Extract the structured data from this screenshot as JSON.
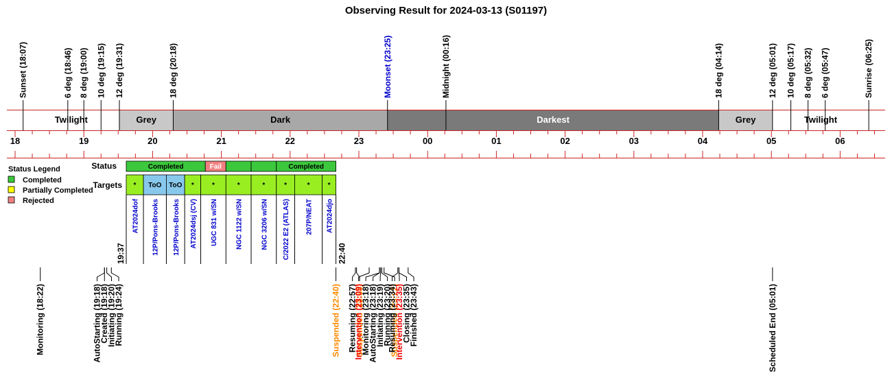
{
  "chart_data": {
    "type": "timeline",
    "title": "Observing Result for 2024-03-13 (S01197)",
    "time_range": [
      "18:00",
      "06:30"
    ],
    "hour_ticks": [
      "18",
      "19",
      "20",
      "21",
      "22",
      "23",
      "00",
      "01",
      "02",
      "03",
      "04",
      "05",
      "06"
    ],
    "sky_events": [
      {
        "label": "Sunset (18:07)",
        "time": "18:07",
        "color": "#000000"
      },
      {
        "label": "6 deg (18:46)",
        "time": "18:46",
        "color": "#000000"
      },
      {
        "label": "8 deg (19:00)",
        "time": "19:00",
        "color": "#000000"
      },
      {
        "label": "10 deg (19:15)",
        "time": "19:15",
        "color": "#000000"
      },
      {
        "label": "12 deg (19:31)",
        "time": "19:31",
        "color": "#000000"
      },
      {
        "label": "18 deg (20:18)",
        "time": "20:18",
        "color": "#000000"
      },
      {
        "label": "Moonset (23:25)",
        "time": "23:25",
        "color": "#0000cc"
      },
      {
        "label": "Midnight (00:16)",
        "time": "00:16",
        "color": "#000000"
      },
      {
        "label": "18 deg (04:14)",
        "time": "04:14",
        "color": "#000000"
      },
      {
        "label": "12 deg (05:01)",
        "time": "05:01",
        "color": "#000000"
      },
      {
        "label": "10 deg (05:17)",
        "time": "05:17",
        "color": "#000000"
      },
      {
        "label": "8 deg (05:32)",
        "time": "05:32",
        "color": "#000000"
      },
      {
        "label": "6 deg (05:47)",
        "time": "05:47",
        "color": "#000000"
      },
      {
        "label": "Sunrise (06:25)",
        "time": "06:25",
        "color": "#000000"
      }
    ],
    "bands": [
      {
        "label": "Twilight",
        "start": "18:07",
        "end": "19:31",
        "fill": "#ffffff",
        "text_color": "#000000"
      },
      {
        "label": "Grey",
        "start": "19:31",
        "end": "20:18",
        "fill": "#c8c8c8",
        "text_color": "#000000"
      },
      {
        "label": "Dark",
        "start": "20:18",
        "end": "23:25",
        "fill": "#a8a8a8",
        "text_color": "#000000"
      },
      {
        "label": "Darkest",
        "start": "23:25",
        "end": "04:14",
        "fill": "#7a7a7a",
        "text_color": "#ffffff"
      },
      {
        "label": "Grey",
        "start": "04:14",
        "end": "05:01",
        "fill": "#c8c8c8",
        "text_color": "#000000"
      },
      {
        "label": "Twilight",
        "start": "05:01",
        "end": "06:25",
        "fill": "#ffffff",
        "text_color": "#000000"
      }
    ],
    "legend": {
      "title": "Status Legend",
      "items": [
        {
          "label": "Completed",
          "color": "#3cc83c"
        },
        {
          "label": "Partially Completed",
          "color": "#ffff00"
        },
        {
          "label": "Rejected",
          "color": "#f08080"
        }
      ]
    },
    "row_labels": {
      "status": "Status",
      "targets": "Targets"
    },
    "status_blocks": [
      {
        "label": "Completed",
        "start": "19:37",
        "end": "20:46",
        "color": "#3cc83c"
      },
      {
        "label": "Fail",
        "start": "20:46",
        "end": "21:04",
        "color": "#f08080"
      },
      {
        "label": "",
        "start": "21:04",
        "end": "21:26",
        "color": "#3cc83c"
      },
      {
        "label": "",
        "start": "21:26",
        "end": "21:48",
        "color": "#3cc83c"
      },
      {
        "label": "Completed",
        "start": "21:48",
        "end": "22:40",
        "color": "#3cc83c"
      }
    ],
    "targets": [
      {
        "name": "AT2024dof",
        "mark": "*",
        "start": "19:37",
        "end": "19:52",
        "color": "#99ee22"
      },
      {
        "name": "12P/Pons-Brooks",
        "mark": "ToO",
        "start": "19:52",
        "end": "20:12",
        "color": "#88c8ec"
      },
      {
        "name": "12P/Pons-Brooks",
        "mark": "ToO",
        "start": "20:12",
        "end": "20:28",
        "color": "#88c8ec"
      },
      {
        "name": "AT2024dsj (CV)",
        "mark": "*",
        "start": "20:28",
        "end": "20:42",
        "color": "#99ee22"
      },
      {
        "name": "UGC 831  w/SN",
        "mark": "*",
        "start": "20:42",
        "end": "21:04",
        "color": "#99ee22"
      },
      {
        "name": "NGC 1122 w/SN",
        "mark": "*",
        "start": "21:04",
        "end": "21:26",
        "color": "#99ee22"
      },
      {
        "name": "NGC 3206 w/SN",
        "mark": "*",
        "start": "21:26",
        "end": "21:48",
        "color": "#99ee22"
      },
      {
        "name": "C/2022 E2 (ATLAS)",
        "mark": "*",
        "start": "21:48",
        "end": "22:04",
        "color": "#99ee22"
      },
      {
        "name": "207P/NEAT",
        "mark": "*",
        "start": "22:04",
        "end": "22:28",
        "color": "#99ee22"
      },
      {
        "name": "AT2024djo",
        "mark": "*",
        "start": "22:28",
        "end": "22:40",
        "color": "#99ee22"
      }
    ],
    "run_start_label": "19:37",
    "run_end_label": "22:40",
    "log_events": [
      {
        "label": "Monitoring (18:22)",
        "time": "18:22",
        "color": "#000000"
      },
      {
        "label": "AutoStarting (19:18)",
        "time": "19:18",
        "color": "#000000"
      },
      {
        "label": "Created (19:18)",
        "time": "19:18",
        "color": "#000000"
      },
      {
        "label": "Initiating (19:20)",
        "time": "19:20",
        "color": "#000000"
      },
      {
        "label": "Running (19:24)",
        "time": "19:24",
        "color": "#000000"
      },
      {
        "label": "Suspended (22:40)",
        "time": "22:40",
        "color": "#ff8800"
      },
      {
        "label": "Resuming (22:57)",
        "time": "22:57",
        "color": "#000000"
      },
      {
        "label": "Suspended (22:58)",
        "time": "22:58",
        "color": "#ff8800"
      },
      {
        "label": "Intervention (23:09)",
        "time": "23:09",
        "color": "#ee0000"
      },
      {
        "label": "Monitoring (23:18)",
        "time": "23:18",
        "color": "#000000"
      },
      {
        "label": "AutoStarting (23:18)",
        "time": "23:18",
        "color": "#000000"
      },
      {
        "label": "Initiating (23:19)",
        "time": "23:19",
        "color": "#000000"
      },
      {
        "label": "Running (23:20)",
        "time": "23:20",
        "color": "#000000"
      },
      {
        "label": "Suspended (23:22)",
        "time": "23:22",
        "color": "#ff8800"
      },
      {
        "label": "Resuming (23:34)",
        "time": "23:34",
        "color": "#000000"
      },
      {
        "label": "Intervention (23:35)",
        "time": "23:35",
        "color": "#ee0000"
      },
      {
        "label": "Closing (23:35)",
        "time": "23:35",
        "color": "#000000"
      },
      {
        "label": "Finished (23:43)",
        "time": "23:43",
        "color": "#000000"
      },
      {
        "label": "Scheduled End (05:01)",
        "time": "05:01",
        "color": "#000000"
      }
    ]
  }
}
